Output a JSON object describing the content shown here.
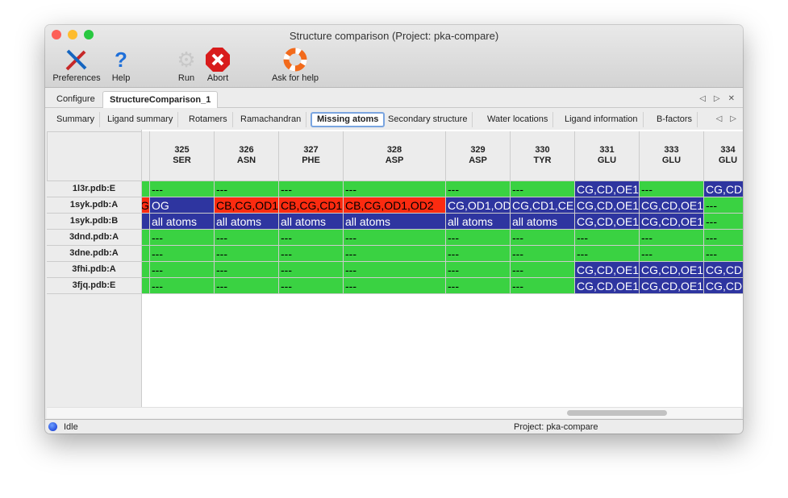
{
  "window": {
    "title": "Structure comparison (Project: pka-compare)"
  },
  "toolbar": [
    {
      "label": "Preferences",
      "icon": "tools-icon"
    },
    {
      "label": "Help",
      "icon": "help-icon"
    },
    {
      "label": "Run",
      "icon": "gear-icon"
    },
    {
      "label": "Abort",
      "icon": "abort-icon"
    },
    {
      "label": "Ask for help",
      "icon": "lifebuoy-icon"
    }
  ],
  "main_tabs": [
    {
      "label": "Configure"
    },
    {
      "label": "StructureComparison_1",
      "active": true
    }
  ],
  "sub_tabs": [
    {
      "label": "Summary"
    },
    {
      "label": "Ligand summary"
    },
    {
      "label": "Rotamers"
    },
    {
      "label": "Ramachandran"
    },
    {
      "label": "Missing atoms",
      "active": true
    },
    {
      "label": "Secondary structure"
    },
    {
      "label": "Water locations"
    },
    {
      "label": "Ligand information"
    },
    {
      "label": "B-factors"
    }
  ],
  "colors": {
    "green": "#3ad242",
    "blue": "#2e35a0",
    "red": "#fb2b10"
  },
  "table": {
    "columns": [
      {
        "num": "",
        "res": ""
      },
      {
        "num": "325",
        "res": "SER"
      },
      {
        "num": "326",
        "res": "ASN"
      },
      {
        "num": "327",
        "res": "PHE"
      },
      {
        "num": "328",
        "res": "ASP"
      },
      {
        "num": "329",
        "res": "ASP"
      },
      {
        "num": "330",
        "res": "TYR"
      },
      {
        "num": "331",
        "res": "GLU"
      },
      {
        "num": "333",
        "res": "GLU"
      },
      {
        "num": "334",
        "res": "GLU"
      }
    ],
    "rows": [
      {
        "label": "1l3r.pdb:E",
        "cells": [
          {
            "t": "",
            "c": "green"
          },
          {
            "t": "---",
            "c": "green"
          },
          {
            "t": "---",
            "c": "green"
          },
          {
            "t": "---",
            "c": "green"
          },
          {
            "t": "---",
            "c": "green"
          },
          {
            "t": "---",
            "c": "green"
          },
          {
            "t": "---",
            "c": "green"
          },
          {
            "t": "CG,CD,OE1",
            "c": "blue"
          },
          {
            "t": "---",
            "c": "green"
          },
          {
            "t": "CG,CD",
            "c": "blue"
          }
        ]
      },
      {
        "label": "1syk.pdb:A",
        "cells": [
          {
            "t": "G",
            "c": "red"
          },
          {
            "t": "OG",
            "c": "blue"
          },
          {
            "t": "CB,CG,OD1",
            "c": "red"
          },
          {
            "t": "CB,CG,CD1",
            "c": "red"
          },
          {
            "t": "CB,CG,OD1,OD2",
            "c": "red"
          },
          {
            "t": "CG,OD1,OD",
            "c": "blue"
          },
          {
            "t": "CG,CD1,CE",
            "c": "blue"
          },
          {
            "t": "CG,CD,OE1",
            "c": "blue"
          },
          {
            "t": "CG,CD,OE1",
            "c": "blue"
          },
          {
            "t": "---",
            "c": "green"
          }
        ]
      },
      {
        "label": "1syk.pdb:B",
        "cells": [
          {
            "t": "",
            "c": "blue"
          },
          {
            "t": "all atoms",
            "c": "blue"
          },
          {
            "t": "all atoms",
            "c": "blue"
          },
          {
            "t": "all atoms",
            "c": "blue"
          },
          {
            "t": "all atoms",
            "c": "blue"
          },
          {
            "t": "all atoms",
            "c": "blue"
          },
          {
            "t": "all atoms",
            "c": "blue"
          },
          {
            "t": "CG,CD,OE1",
            "c": "blue"
          },
          {
            "t": "CG,CD,OE1",
            "c": "blue"
          },
          {
            "t": "---",
            "c": "green"
          }
        ]
      },
      {
        "label": "3dnd.pdb:A",
        "cells": [
          {
            "t": "",
            "c": "green"
          },
          {
            "t": "---",
            "c": "green"
          },
          {
            "t": "---",
            "c": "green"
          },
          {
            "t": "---",
            "c": "green"
          },
          {
            "t": "---",
            "c": "green"
          },
          {
            "t": "---",
            "c": "green"
          },
          {
            "t": "---",
            "c": "green"
          },
          {
            "t": "---",
            "c": "green"
          },
          {
            "t": "---",
            "c": "green"
          },
          {
            "t": "---",
            "c": "green"
          }
        ]
      },
      {
        "label": "3dne.pdb:A",
        "cells": [
          {
            "t": "",
            "c": "green"
          },
          {
            "t": "---",
            "c": "green"
          },
          {
            "t": "---",
            "c": "green"
          },
          {
            "t": "---",
            "c": "green"
          },
          {
            "t": "---",
            "c": "green"
          },
          {
            "t": "---",
            "c": "green"
          },
          {
            "t": "---",
            "c": "green"
          },
          {
            "t": "---",
            "c": "green"
          },
          {
            "t": "---",
            "c": "green"
          },
          {
            "t": "---",
            "c": "green"
          }
        ]
      },
      {
        "label": "3fhi.pdb:A",
        "cells": [
          {
            "t": "",
            "c": "green"
          },
          {
            "t": "---",
            "c": "green"
          },
          {
            "t": "---",
            "c": "green"
          },
          {
            "t": "---",
            "c": "green"
          },
          {
            "t": "---",
            "c": "green"
          },
          {
            "t": "---",
            "c": "green"
          },
          {
            "t": "---",
            "c": "green"
          },
          {
            "t": "CG,CD,OE1",
            "c": "blue"
          },
          {
            "t": "CG,CD,OE1",
            "c": "blue"
          },
          {
            "t": "CG,CD",
            "c": "blue"
          }
        ]
      },
      {
        "label": "3fjq.pdb:E",
        "cells": [
          {
            "t": "",
            "c": "green"
          },
          {
            "t": "---",
            "c": "green"
          },
          {
            "t": "---",
            "c": "green"
          },
          {
            "t": "---",
            "c": "green"
          },
          {
            "t": "---",
            "c": "green"
          },
          {
            "t": "---",
            "c": "green"
          },
          {
            "t": "---",
            "c": "green"
          },
          {
            "t": "CG,CD,OE1",
            "c": "blue"
          },
          {
            "t": "CG,CD,OE1",
            "c": "blue"
          },
          {
            "t": "CG,CD",
            "c": "blue"
          }
        ]
      }
    ]
  },
  "status": {
    "text": "Idle",
    "project": "Project: pka-compare"
  }
}
